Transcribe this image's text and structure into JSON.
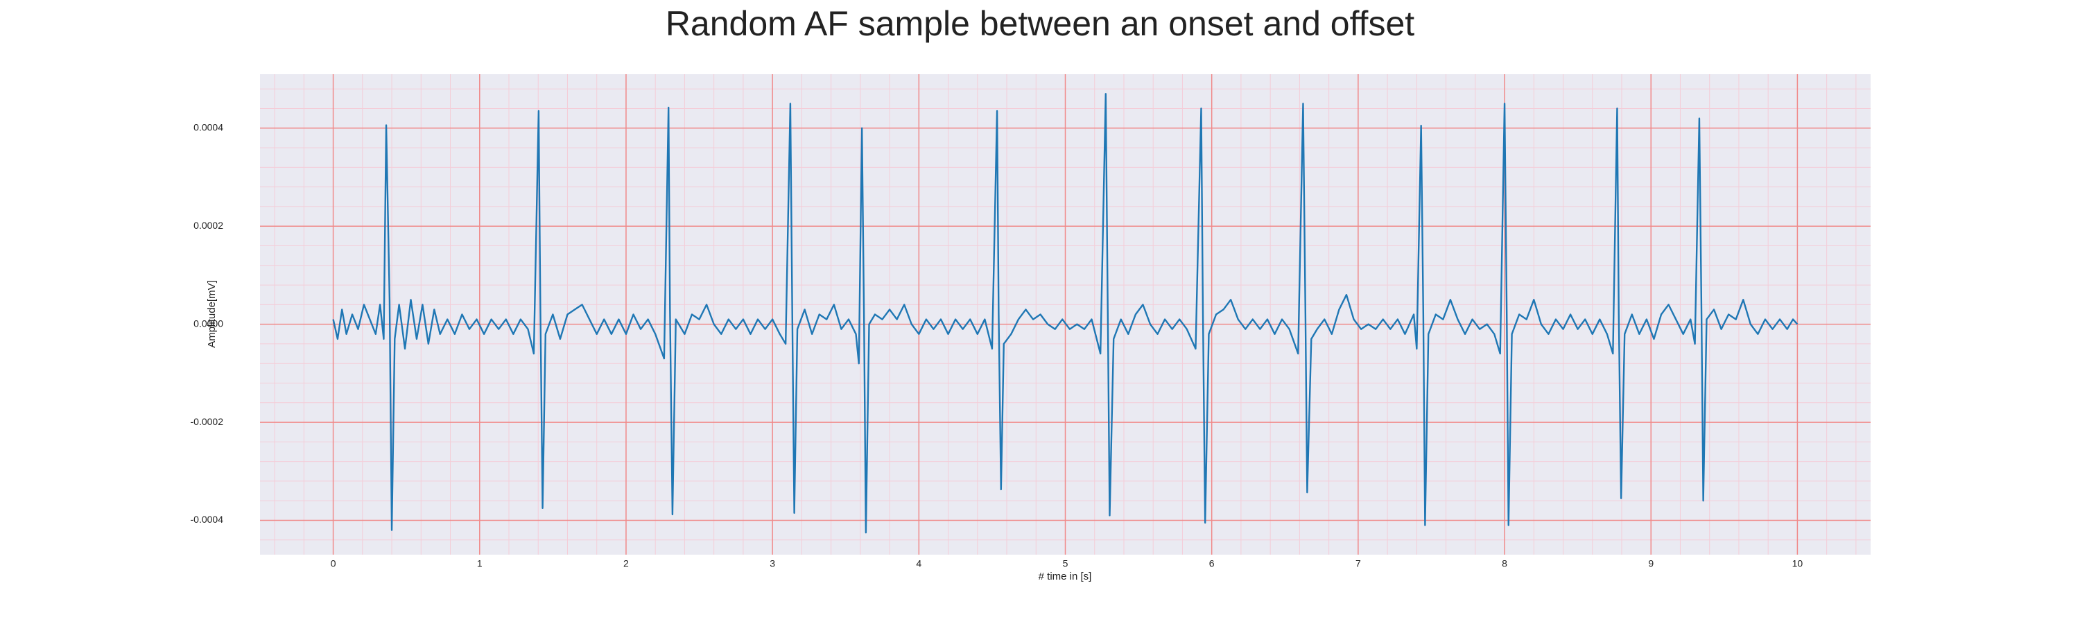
{
  "chart_data": {
    "type": "line",
    "title": "Random AF sample between an onset and offset",
    "xlabel": "# time in [s]",
    "ylabel": "Amplitude[mV]",
    "xlim": [
      -0.5,
      10.5
    ],
    "ylim": [
      -0.00047,
      0.00051
    ],
    "xticks": [
      0,
      1,
      2,
      3,
      4,
      5,
      6,
      7,
      8,
      9,
      10
    ],
    "yticks": [
      -0.0004,
      -0.0002,
      {
        "value": 0,
        "label": "0.0000"
      },
      0.0002,
      0.0004
    ],
    "xminorticks": [
      -0.4,
      -0.2,
      0.2,
      0.4,
      0.6,
      0.8,
      1.2,
      1.4,
      1.6,
      1.8,
      2.2,
      2.4,
      2.6,
      2.8,
      3.2,
      3.4,
      3.6,
      3.8,
      4.2,
      4.4,
      4.6,
      4.8,
      5.2,
      5.4,
      5.6,
      5.8,
      6.2,
      6.4,
      6.6,
      6.8,
      7.2,
      7.4,
      7.6,
      7.8,
      8.2,
      8.4,
      8.6,
      8.8,
      9.2,
      9.4,
      9.6,
      9.8,
      10.2,
      10.4
    ],
    "yminorticks": [
      -0.00044,
      -0.00036,
      -0.00032,
      -0.00028,
      -0.00024,
      -0.00016,
      -0.00012,
      -8e-05,
      -4e-05,
      4e-05,
      8e-05,
      0.00012,
      0.00016,
      0.00024,
      0.00028,
      0.00032,
      0.00036,
      0.00044,
      0.00048
    ],
    "grid": true,
    "grid_color": "#f08a8a",
    "minor_grid_color": "#f4cdd8",
    "background": "#eaeaf2",
    "series": [
      {
        "color": "#1f77b4",
        "x": [
          0.0,
          0.03,
          0.06,
          0.09,
          0.13,
          0.17,
          0.21,
          0.25,
          0.29,
          0.32,
          0.345,
          0.362,
          0.385,
          0.4,
          0.42,
          0.45,
          0.49,
          0.53,
          0.57,
          0.61,
          0.65,
          0.69,
          0.73,
          0.78,
          0.83,
          0.88,
          0.93,
          0.98,
          1.03,
          1.08,
          1.13,
          1.18,
          1.23,
          1.28,
          1.33,
          1.37,
          1.403,
          1.415,
          1.43,
          1.45,
          1.5,
          1.55,
          1.6,
          1.65,
          1.7,
          1.75,
          1.8,
          1.85,
          1.9,
          1.95,
          2.0,
          2.05,
          2.1,
          2.15,
          2.2,
          2.26,
          2.29,
          2.3,
          2.317,
          2.34,
          2.4,
          2.45,
          2.5,
          2.55,
          2.6,
          2.65,
          2.7,
          2.75,
          2.8,
          2.85,
          2.9,
          2.95,
          3.0,
          3.05,
          3.09,
          3.122,
          3.135,
          3.149,
          3.17,
          3.22,
          3.27,
          3.32,
          3.37,
          3.42,
          3.47,
          3.52,
          3.57,
          3.59,
          3.611,
          3.625,
          3.638,
          3.66,
          3.7,
          3.75,
          3.8,
          3.85,
          3.9,
          3.95,
          4.0,
          4.05,
          4.1,
          4.15,
          4.2,
          4.25,
          4.3,
          4.35,
          4.4,
          4.45,
          4.5,
          4.534,
          4.545,
          4.561,
          4.58,
          4.63,
          4.68,
          4.73,
          4.78,
          4.83,
          4.88,
          4.93,
          4.98,
          5.03,
          5.08,
          5.13,
          5.18,
          5.24,
          5.276,
          5.29,
          5.303,
          5.33,
          5.38,
          5.43,
          5.48,
          5.53,
          5.58,
          5.63,
          5.68,
          5.73,
          5.78,
          5.83,
          5.89,
          5.928,
          5.94,
          5.955,
          5.98,
          6.03,
          6.08,
          6.13,
          6.18,
          6.23,
          6.28,
          6.33,
          6.38,
          6.43,
          6.48,
          6.53,
          6.59,
          6.624,
          6.64,
          6.652,
          6.68,
          6.72,
          6.77,
          6.82,
          6.87,
          6.92,
          6.97,
          7.02,
          7.07,
          7.12,
          7.17,
          7.22,
          7.27,
          7.32,
          7.38,
          7.4,
          7.43,
          7.445,
          7.457,
          7.48,
          7.53,
          7.58,
          7.63,
          7.68,
          7.73,
          7.78,
          7.83,
          7.88,
          7.93,
          7.97,
          8.0,
          8.015,
          8.027,
          8.05,
          8.1,
          8.15,
          8.2,
          8.25,
          8.3,
          8.35,
          8.4,
          8.45,
          8.5,
          8.55,
          8.6,
          8.65,
          8.7,
          8.74,
          8.769,
          8.78,
          8.796,
          8.82,
          8.87,
          8.92,
          8.97,
          9.02,
          9.07,
          9.12,
          9.17,
          9.22,
          9.27,
          9.3,
          9.33,
          9.345,
          9.357,
          9.38,
          9.43,
          9.48,
          9.53,
          9.58,
          9.63,
          9.68,
          9.73,
          9.78,
          9.83,
          9.88,
          9.93,
          9.97,
          10.0
        ],
        "values": [
          1e-05,
          -3e-05,
          3e-05,
          -2e-05,
          2e-05,
          -1e-05,
          4e-05,
          1e-05,
          -2e-05,
          4e-05,
          -3e-05,
          0.000406,
          5e-05,
          -0.00042,
          -3e-05,
          4e-05,
          -5e-05,
          5e-05,
          -3e-05,
          4e-05,
          -4e-05,
          3e-05,
          -2e-05,
          1e-05,
          -2e-05,
          2e-05,
          -1e-05,
          1e-05,
          -2e-05,
          1e-05,
          -1e-05,
          1e-05,
          -2e-05,
          1e-05,
          -1e-05,
          -6e-05,
          0.000435,
          3e-05,
          -0.000375,
          -2e-05,
          2e-05,
          -3e-05,
          2e-05,
          3e-05,
          4e-05,
          1e-05,
          -2e-05,
          1e-05,
          -2e-05,
          1e-05,
          -2e-05,
          2e-05,
          -1e-05,
          1e-05,
          -2e-05,
          -7e-05,
          0.000442,
          3e-05,
          -0.000388,
          1e-05,
          -2e-05,
          2e-05,
          1e-05,
          4e-05,
          0,
          -2e-05,
          1e-05,
          -1e-05,
          1e-05,
          -2e-05,
          1e-05,
          -1e-05,
          1e-05,
          -2e-05,
          -4e-05,
          0.00045,
          3e-05,
          -0.000385,
          -1e-05,
          3e-05,
          -2e-05,
          2e-05,
          1e-05,
          4e-05,
          -1e-05,
          1e-05,
          -2e-05,
          -8e-05,
          0.0004,
          2e-05,
          -0.000425,
          0,
          2e-05,
          1e-05,
          3e-05,
          1e-05,
          4e-05,
          0,
          -2e-05,
          1e-05,
          -1e-05,
          1e-05,
          -2e-05,
          1e-05,
          -1e-05,
          1e-05,
          -2e-05,
          1e-05,
          -5e-05,
          0.000435,
          2e-05,
          -0.000337,
          -4e-05,
          -2e-05,
          1e-05,
          3e-05,
          1e-05,
          2e-05,
          0,
          -1e-05,
          1e-05,
          -1e-05,
          0,
          -1e-05,
          1e-05,
          -6e-05,
          0.00047,
          3e-05,
          -0.00039,
          -3e-05,
          1e-05,
          -2e-05,
          2e-05,
          4e-05,
          0,
          -2e-05,
          1e-05,
          -1e-05,
          1e-05,
          -1e-05,
          -5e-05,
          0.00044,
          2e-05,
          -0.000405,
          -2e-05,
          2e-05,
          3e-05,
          5e-05,
          1e-05,
          -1e-05,
          1e-05,
          -1e-05,
          1e-05,
          -2e-05,
          1e-05,
          -1e-05,
          -6e-05,
          0.00045,
          2e-05,
          -0.000343,
          -3e-05,
          -1e-05,
          1e-05,
          -2e-05,
          3e-05,
          6e-05,
          1e-05,
          -1e-05,
          0,
          -1e-05,
          1e-05,
          -1e-05,
          1e-05,
          -2e-05,
          2e-05,
          -5e-05,
          0.000405,
          2e-05,
          -0.00041,
          -2e-05,
          2e-05,
          1e-05,
          5e-05,
          1e-05,
          -2e-05,
          1e-05,
          -1e-05,
          0,
          -2e-05,
          -6e-05,
          0.00045,
          2e-05,
          -0.00041,
          -2e-05,
          2e-05,
          1e-05,
          5e-05,
          0,
          -2e-05,
          1e-05,
          -1e-05,
          2e-05,
          -1e-05,
          1e-05,
          -2e-05,
          1e-05,
          -2e-05,
          -6e-05,
          0.00044,
          2e-05,
          -0.000355,
          -2e-05,
          2e-05,
          -2e-05,
          1e-05,
          -3e-05,
          2e-05,
          4e-05,
          1e-05,
          -2e-05,
          1e-05,
          -4e-05,
          0.00042,
          2e-05,
          -0.00036,
          1e-05,
          3e-05,
          -1e-05,
          2e-05,
          1e-05,
          5e-05,
          0,
          -2e-05,
          1e-05,
          -1e-05,
          1e-05,
          -1e-05,
          1e-05,
          0
        ]
      }
    ]
  }
}
